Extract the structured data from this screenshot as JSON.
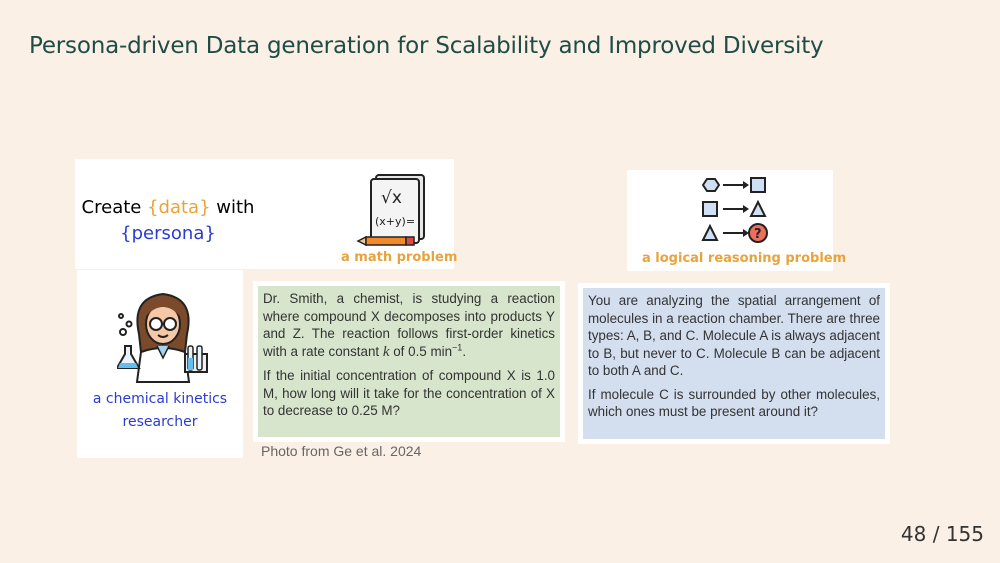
{
  "slide": {
    "title": "Persona-driven Data generation for Scalability and Improved Diversity",
    "page_current": "48",
    "page_total": "155",
    "page_separator": "/"
  },
  "create_card": {
    "prefix": "Create ",
    "data_placeholder": "{data}",
    "middle": " with",
    "persona_placeholder": "{persona}",
    "math_icon_text": "√x",
    "math_icon_text2": "(x+y)=",
    "math_caption": "a math problem"
  },
  "logic_card": {
    "caption": "a logical reasoning problem",
    "question_mark": "?"
  },
  "persona_card": {
    "caption_line1": "a chemical kinetics",
    "caption_line2": "researcher"
  },
  "math_problem": {
    "para1_a": "Dr. Smith, a chemist, is studying a reaction where compound X decomposes into products Y and Z. The reaction follows first-order kinetics with a rate constant ",
    "para1_k": "k",
    "para1_b": " of 0.5 min",
    "para1_exp": "−1",
    "para1_end": ".",
    "para2": "If the initial concentration of compound X is 1.0 M, how long will it take for the concentration of X to decrease to 0.25 M?"
  },
  "logic_problem": {
    "para1": "You are analyzing the spatial arrangement of molecules in a reaction chamber. There are three types: A, B, and C. Molecule A is always adjacent to B, but never to C. Molecule B can be adjacent to both A and C.",
    "para2": "If molecule C is surrounded by other molecules, which ones must be present around it?"
  },
  "credit": "Photo from Ge et al. 2024",
  "colors": {
    "background": "#faf0e6",
    "title": "#1f4d46",
    "placeholder_orange": "#e8a33c",
    "placeholder_blue": "#2a3ccf",
    "green_box": "#d7e5cc",
    "blue_box": "#d3deee"
  }
}
